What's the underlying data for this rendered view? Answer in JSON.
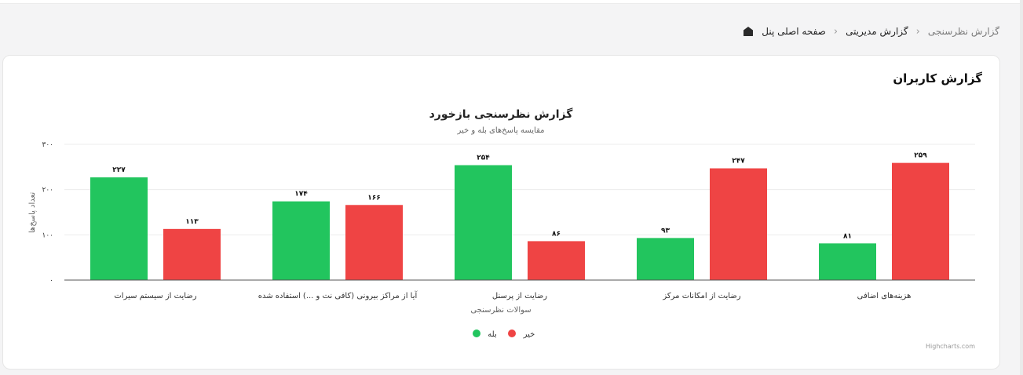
{
  "breadcrumb": {
    "home_icon": "home-icon",
    "items": [
      "صفحه اصلی پنل",
      "گزارش مدیریتی",
      "گزارش نظرسنجی"
    ]
  },
  "card": {
    "title": "گزارش کاربران"
  },
  "colors": {
    "yes": "#22c55e",
    "no": "#ef4444"
  },
  "chart_data": {
    "type": "bar",
    "title": "گزارش نظرسنجی بازخورد",
    "subtitle": "مقایسه پاسخ‌های بله و خیر",
    "xlabel": "سوالات نظرسنجی",
    "ylabel": "تعداد پاسخ‌ها",
    "ylim": [
      0,
      300
    ],
    "yticks": [
      "۰",
      "۱۰۰",
      "۲۰۰",
      "۳۰۰"
    ],
    "ytick_values": [
      0,
      100,
      200,
      300
    ],
    "grid": true,
    "legend": "bottom",
    "categories": [
      "رضایت از سیستم سیرات",
      "آیا از مراکز بیرونی (کافی نت و ...) استفاده شده",
      "رضایت از پرسنل",
      "رضایت از امکانات مرکز",
      "هزینه‌های اضافی"
    ],
    "series": [
      {
        "name": "بله",
        "values": [
          227,
          174,
          254,
          93,
          81
        ],
        "labels": [
          "۲۲۷",
          "۱۷۴",
          "۲۵۴",
          "۹۳",
          "۸۱"
        ]
      },
      {
        "name": "خیر",
        "values": [
          113,
          166,
          86,
          247,
          259
        ],
        "labels": [
          "۱۱۳",
          "۱۶۶",
          "۸۶",
          "۲۴۷",
          "۲۵۹"
        ]
      }
    ],
    "credits": "Highcharts.com"
  }
}
